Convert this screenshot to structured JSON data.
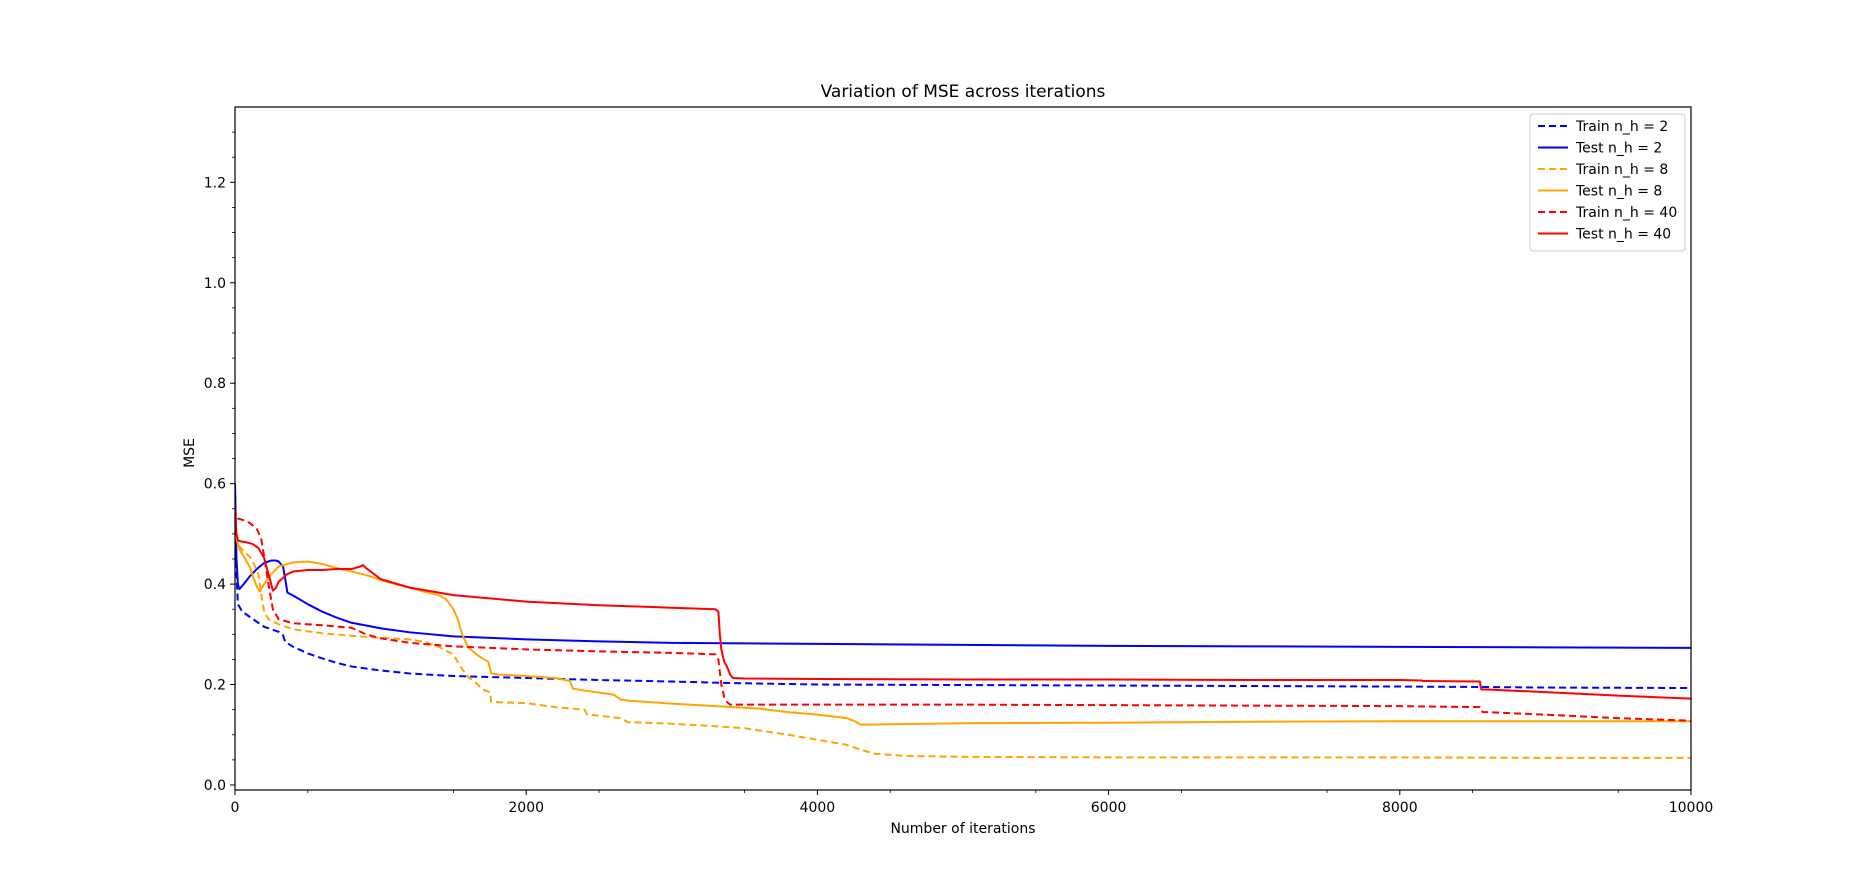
{
  "chart_data": {
    "type": "line",
    "title": "Variation of MSE across iterations",
    "xlabel": "Number of iterations",
    "ylabel": "MSE",
    "xlim": [
      0,
      10000
    ],
    "ylim": [
      -0.01,
      1.35
    ],
    "xticks": [
      0,
      2000,
      4000,
      6000,
      8000,
      10000
    ],
    "yticks": [
      0.0,
      0.2,
      0.4,
      0.6,
      0.8,
      1.0,
      1.2
    ],
    "ytick_labels": [
      "0.0",
      "0.2",
      "0.4",
      "0.6",
      "0.8",
      "1.0",
      "1.2"
    ],
    "grid": false,
    "legend_position": "top-right",
    "series": [
      {
        "name": "Train n_h = 2",
        "color": "#0000ff",
        "style": "dashed",
        "x": [
          0,
          5,
          20,
          50,
          100,
          150,
          200,
          250,
          300,
          330,
          345,
          400,
          500,
          600,
          700,
          800,
          1000,
          1200,
          1500,
          2000,
          2500,
          3000,
          3400,
          4000,
          5000,
          6000,
          7000,
          8000,
          8600,
          9000,
          10000
        ],
        "y": [
          0.6,
          0.45,
          0.36,
          0.345,
          0.335,
          0.325,
          0.315,
          0.31,
          0.305,
          0.298,
          0.285,
          0.275,
          0.262,
          0.252,
          0.243,
          0.236,
          0.228,
          0.222,
          0.217,
          0.213,
          0.209,
          0.206,
          0.203,
          0.2,
          0.199,
          0.198,
          0.197,
          0.196,
          0.195,
          0.194,
          0.193
        ]
      },
      {
        "name": "Test n_h = 2",
        "color": "#0000ff",
        "style": "solid",
        "x": [
          0,
          10,
          20,
          30,
          60,
          100,
          150,
          200,
          250,
          280,
          300,
          330,
          345,
          360,
          400,
          500,
          600,
          700,
          800,
          1000,
          1200,
          1500,
          2000,
          2500,
          3000,
          4000,
          5000,
          6000,
          7000,
          8000,
          9000,
          10000
        ],
        "y": [
          0.6,
          0.45,
          0.4,
          0.39,
          0.4,
          0.415,
          0.43,
          0.442,
          0.447,
          0.447,
          0.445,
          0.435,
          0.41,
          0.383,
          0.377,
          0.36,
          0.345,
          0.333,
          0.323,
          0.312,
          0.304,
          0.296,
          0.29,
          0.286,
          0.283,
          0.281,
          0.279,
          0.277,
          0.276,
          0.275,
          0.274,
          0.273
        ]
      },
      {
        "name": "Train n_h = 8",
        "color": "#ffa500",
        "style": "dashed",
        "x": [
          0,
          10,
          30,
          60,
          100,
          130,
          160,
          180,
          200,
          230,
          300,
          400,
          600,
          800,
          1000,
          1200,
          1300,
          1400,
          1500,
          1550,
          1600,
          1650,
          1700,
          1750,
          1760,
          1800,
          2000,
          2200,
          2400,
          2420,
          2500,
          2650,
          2700,
          3000,
          3300,
          3500,
          3800,
          4000,
          4200,
          4300,
          4400,
          4600,
          5000,
          6000,
          7000,
          8000,
          9000,
          10000
        ],
        "y": [
          0.52,
          0.5,
          0.475,
          0.465,
          0.455,
          0.44,
          0.42,
          0.38,
          0.345,
          0.33,
          0.32,
          0.31,
          0.302,
          0.297,
          0.293,
          0.29,
          0.285,
          0.275,
          0.26,
          0.235,
          0.215,
          0.205,
          0.19,
          0.185,
          0.165,
          0.165,
          0.163,
          0.155,
          0.15,
          0.14,
          0.138,
          0.133,
          0.125,
          0.122,
          0.117,
          0.113,
          0.1,
          0.09,
          0.08,
          0.07,
          0.062,
          0.058,
          0.056,
          0.055,
          0.055,
          0.055,
          0.054,
          0.054
        ]
      },
      {
        "name": "Test n_h = 8",
        "color": "#ffa500",
        "style": "solid",
        "x": [
          0,
          10,
          30,
          60,
          100,
          130,
          150,
          170,
          200,
          250,
          300,
          400,
          500,
          600,
          700,
          800,
          900,
          1000,
          1100,
          1200,
          1300,
          1400,
          1450,
          1500,
          1530,
          1560,
          1600,
          1650,
          1700,
          1740,
          1760,
          1800,
          2000,
          2200,
          2300,
          2320,
          2400,
          2600,
          2650,
          2700,
          3000,
          3300,
          3600,
          3800,
          4000,
          4200,
          4250,
          4300,
          4500,
          5000,
          6000,
          7000,
          8000,
          9000,
          10000
        ],
        "y": [
          0.52,
          0.49,
          0.47,
          0.455,
          0.435,
          0.41,
          0.395,
          0.385,
          0.4,
          0.42,
          0.435,
          0.443,
          0.445,
          0.44,
          0.432,
          0.425,
          0.418,
          0.408,
          0.4,
          0.393,
          0.385,
          0.378,
          0.37,
          0.35,
          0.33,
          0.3,
          0.275,
          0.262,
          0.252,
          0.245,
          0.222,
          0.22,
          0.217,
          0.213,
          0.207,
          0.192,
          0.188,
          0.18,
          0.17,
          0.168,
          0.162,
          0.157,
          0.152,
          0.145,
          0.14,
          0.133,
          0.128,
          0.12,
          0.121,
          0.123,
          0.124,
          0.126,
          0.127,
          0.127,
          0.127
        ]
      },
      {
        "name": "Train n_h = 40",
        "color": "#ff0000",
        "style": "dashed",
        "x": [
          0,
          10,
          30,
          60,
          100,
          150,
          180,
          200,
          230,
          260,
          300,
          400,
          600,
          800,
          900,
          1000,
          1200,
          1500,
          2000,
          2500,
          3000,
          3300,
          3320,
          3340,
          3360,
          3380,
          3400,
          3500,
          4000,
          5000,
          6000,
          7000,
          8000,
          8550,
          8570,
          8600,
          9000,
          9500,
          10000
        ],
        "y": [
          0.55,
          0.53,
          0.53,
          0.527,
          0.522,
          0.51,
          0.49,
          0.455,
          0.4,
          0.35,
          0.33,
          0.322,
          0.318,
          0.313,
          0.3,
          0.292,
          0.283,
          0.276,
          0.27,
          0.266,
          0.263,
          0.26,
          0.25,
          0.2,
          0.175,
          0.165,
          0.16,
          0.16,
          0.16,
          0.16,
          0.159,
          0.158,
          0.157,
          0.155,
          0.145,
          0.145,
          0.14,
          0.133,
          0.128
        ]
      },
      {
        "name": "Test n_h = 40",
        "color": "#ff0000",
        "style": "solid",
        "x": [
          0,
          10,
          20,
          40,
          80,
          120,
          160,
          200,
          230,
          260,
          280,
          300,
          340,
          360,
          400,
          500,
          600,
          700,
          800,
          860,
          880,
          900,
          1000,
          1200,
          1500,
          2000,
          2500,
          3000,
          3300,
          3320,
          3330,
          3340,
          3360,
          3380,
          3400,
          3420,
          3500,
          4000,
          5000,
          6000,
          7000,
          8000,
          8150,
          8160,
          8550,
          8560,
          8600,
          9000,
          9500,
          10000
        ],
        "y": [
          0.55,
          0.5,
          0.487,
          0.485,
          0.483,
          0.48,
          0.472,
          0.452,
          0.42,
          0.387,
          0.392,
          0.405,
          0.415,
          0.42,
          0.425,
          0.428,
          0.428,
          0.43,
          0.43,
          0.435,
          0.438,
          0.432,
          0.41,
          0.393,
          0.378,
          0.365,
          0.358,
          0.353,
          0.35,
          0.345,
          0.3,
          0.27,
          0.245,
          0.235,
          0.22,
          0.213,
          0.212,
          0.211,
          0.21,
          0.21,
          0.209,
          0.209,
          0.208,
          0.207,
          0.206,
          0.19,
          0.19,
          0.185,
          0.178,
          0.172
        ]
      }
    ]
  }
}
